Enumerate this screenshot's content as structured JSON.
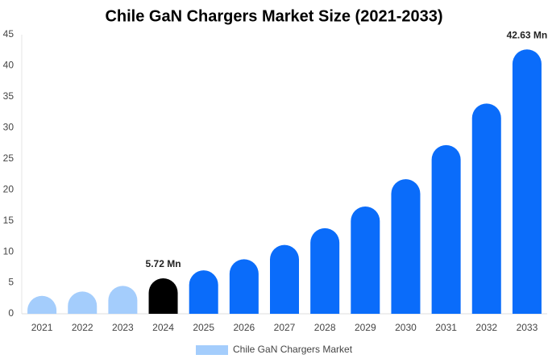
{
  "chart_data": {
    "type": "bar",
    "title": "Chile GaN Chargers Market Size (2021-2033)",
    "categories": [
      "2021",
      "2022",
      "2023",
      "2024",
      "2025",
      "2026",
      "2027",
      "2028",
      "2029",
      "2030",
      "2031",
      "2032",
      "2033"
    ],
    "series": [
      {
        "name": "Chile GaN Chargers Market",
        "color": "#a4cdfc",
        "values": [
          2.9,
          3.6,
          4.5,
          5.72,
          7.0,
          8.8,
          11.1,
          13.8,
          17.3,
          21.7,
          27.2,
          33.9,
          42.63
        ],
        "value_labels": [
          null,
          null,
          null,
          "5.72 Mn",
          null,
          null,
          null,
          null,
          null,
          null,
          null,
          null,
          "42.63 Mn"
        ],
        "colors": [
          "#a4cdfc",
          "#a4cdfc",
          "#a4cdfc",
          "#000000",
          "#0a6cfa",
          "#0a6cfa",
          "#0a6cfa",
          "#0a6cfa",
          "#0a6cfa",
          "#0a6cfa",
          "#0a6cfa",
          "#0a6cfa",
          "#0a6cfa"
        ]
      }
    ],
    "ylim": [
      0,
      45
    ],
    "yticks": [
      0,
      5,
      10,
      15,
      20,
      25,
      30,
      35,
      40,
      45
    ],
    "grid": false,
    "legend": "bottom"
  }
}
